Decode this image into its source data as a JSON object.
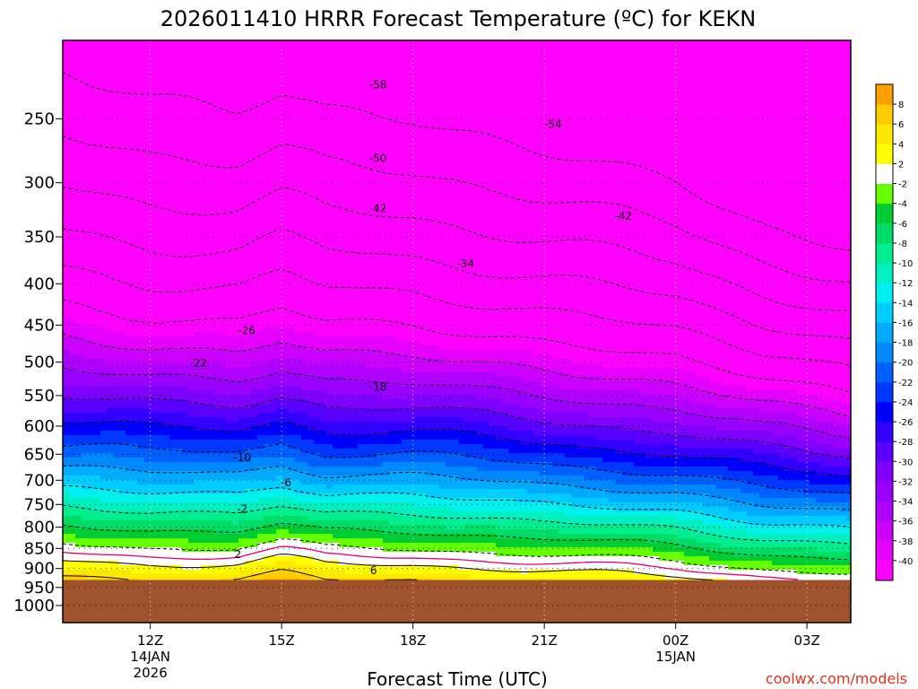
{
  "chart_data": {
    "type": "heatmap",
    "title": "2026011410 HRRR Forecast Temperature (ºC) for KEKN",
    "xlabel": "Forecast Time (UTC)",
    "credit": "coolwx.com/models",
    "x_ticks": [
      {
        "hour": 12,
        "label": "12Z",
        "sub1": "14JAN",
        "sub2": "2026"
      },
      {
        "hour": 15,
        "label": "15Z",
        "sub1": "",
        "sub2": ""
      },
      {
        "hour": 18,
        "label": "18Z",
        "sub1": "",
        "sub2": ""
      },
      {
        "hour": 21,
        "label": "21Z",
        "sub1": "",
        "sub2": ""
      },
      {
        "hour": 24,
        "label": "00Z",
        "sub1": "15JAN",
        "sub2": ""
      },
      {
        "hour": 27,
        "label": "03Z",
        "sub1": "",
        "sub2": ""
      }
    ],
    "xlim_hours": [
      10,
      28
    ],
    "y_axis": {
      "type": "log-pressure",
      "unit": "hPa",
      "ylim": [
        1050,
        200
      ],
      "ticks": [
        250,
        300,
        350,
        400,
        450,
        500,
        550,
        600,
        650,
        700,
        750,
        800,
        850,
        900,
        950,
        1000
      ]
    },
    "ground_pressure": 930,
    "ground_color": "#a0522d",
    "times": [
      10,
      12,
      14,
      15,
      16,
      18,
      20,
      22,
      24,
      26,
      28
    ],
    "surface_temp_c": [
      7,
      6,
      6,
      8,
      6,
      6,
      5,
      4,
      3,
      1,
      0
    ],
    "lapse_c_per_hpa": [
      0.097,
      0.098,
      0.099,
      0.1,
      0.099,
      0.1,
      0.101,
      0.102,
      0.103,
      0.106,
      0.109
    ],
    "colorbar": {
      "levels": [
        -40,
        -38,
        -36,
        -34,
        -32,
        -30,
        -28,
        -26,
        -24,
        -22,
        -20,
        -18,
        -16,
        -14,
        -12,
        -10,
        -8,
        -6,
        -4,
        -2,
        2,
        4,
        6,
        8
      ],
      "colors": [
        "#ff00ff",
        "#e600ff",
        "#cc00ff",
        "#b000ff",
        "#9900ff",
        "#7f00ff",
        "#5a00ff",
        "#3300ff",
        "#0000ff",
        "#0038ff",
        "#0060ff",
        "#0088ff",
        "#00aaff",
        "#00ccff",
        "#00f0f0",
        "#00f0c0",
        "#00ee90",
        "#00dd66",
        "#00cc33",
        "#66ff00",
        "#ffffff",
        "#ffff00",
        "#ffe800",
        "#ffcc00",
        "#ffa000"
      ]
    },
    "contour_labels": [
      {
        "value": "-58",
        "hour": 17.2,
        "pressure": 227
      },
      {
        "value": "-54",
        "hour": 21.2,
        "pressure": 254
      },
      {
        "value": "-50",
        "hour": 17.2,
        "pressure": 280
      },
      {
        "value": "-42",
        "hour": 17.2,
        "pressure": 323
      },
      {
        "value": "-42",
        "hour": 22.8,
        "pressure": 330
      },
      {
        "value": "-34",
        "hour": 19.2,
        "pressure": 378
      },
      {
        "value": "-26",
        "hour": 14.2,
        "pressure": 457
      },
      {
        "value": "-22",
        "hour": 13.1,
        "pressure": 502
      },
      {
        "value": "-18",
        "hour": 17.2,
        "pressure": 537
      },
      {
        "value": "-10",
        "hour": 14.1,
        "pressure": 656
      },
      {
        "value": "-6",
        "hour": 15.1,
        "pressure": 705
      },
      {
        "value": "-2",
        "hour": 14.1,
        "pressure": 760
      },
      {
        "value": "2",
        "hour": 14.0,
        "pressure": 865
      },
      {
        "value": "6",
        "hour": 17.1,
        "pressure": 905
      }
    ]
  }
}
